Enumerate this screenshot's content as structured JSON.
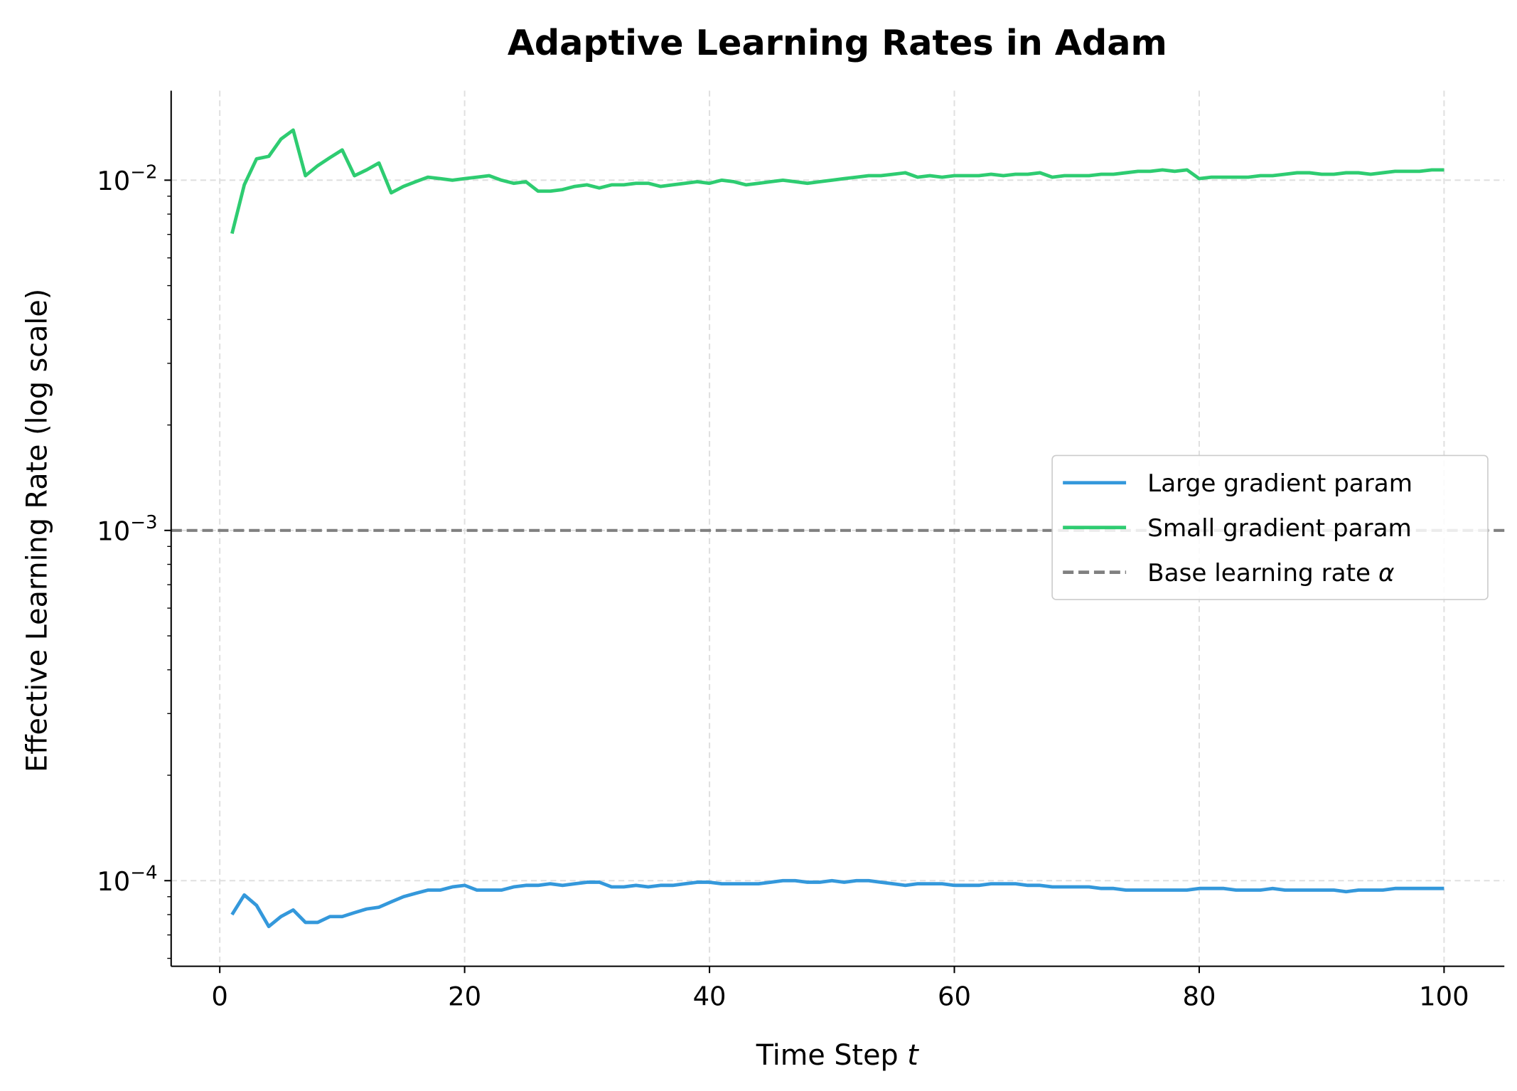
{
  "chart_data": {
    "type": "line",
    "title": "Adaptive Learning Rates in Adam",
    "xlabel": "Time Step",
    "xlabel_var": "t",
    "ylabel": "Effective Learning Rate (log scale)",
    "xlim": [
      -4,
      105
    ],
    "ylim": [
      5.7e-05,
      0.018
    ],
    "yscale": "log",
    "grid": true,
    "legend_position": "center-right",
    "xticks": [
      0,
      20,
      40,
      60,
      80,
      100
    ],
    "xtick_labels": [
      "0",
      "20",
      "40",
      "60",
      "80",
      "100"
    ],
    "yticks": [
      {
        "value": 0.01,
        "base": "10",
        "exp": "−2"
      },
      {
        "value": 0.001,
        "base": "10",
        "exp": "−3"
      },
      {
        "value": 0.0001,
        "base": "10",
        "exp": "−4"
      }
    ],
    "x": [
      1,
      2,
      3,
      4,
      5,
      6,
      7,
      8,
      9,
      10,
      11,
      12,
      13,
      14,
      15,
      16,
      17,
      18,
      19,
      20,
      21,
      22,
      23,
      24,
      25,
      26,
      27,
      28,
      29,
      30,
      31,
      32,
      33,
      34,
      35,
      36,
      37,
      38,
      39,
      40,
      41,
      42,
      43,
      44,
      45,
      46,
      47,
      48,
      49,
      50,
      51,
      52,
      53,
      54,
      55,
      56,
      57,
      58,
      59,
      60,
      61,
      62,
      63,
      64,
      65,
      66,
      67,
      68,
      69,
      70,
      71,
      72,
      73,
      74,
      75,
      76,
      77,
      78,
      79,
      80,
      81,
      82,
      83,
      84,
      85,
      86,
      87,
      88,
      89,
      90,
      91,
      92,
      93,
      94,
      95,
      96,
      97,
      98,
      99,
      100
    ],
    "series": [
      {
        "name": "Large gradient param",
        "color": "#3498db",
        "style": "solid",
        "values": [
          8e-05,
          9.1e-05,
          8.5e-05,
          7.4e-05,
          7.9e-05,
          8.25e-05,
          7.6e-05,
          7.6e-05,
          7.9e-05,
          7.9e-05,
          8.1e-05,
          8.3e-05,
          8.4e-05,
          8.7e-05,
          9e-05,
          9.2e-05,
          9.4e-05,
          9.4e-05,
          9.6e-05,
          9.7e-05,
          9.4e-05,
          9.4e-05,
          9.4e-05,
          9.6e-05,
          9.7e-05,
          9.7e-05,
          9.8e-05,
          9.7e-05,
          9.8e-05,
          9.9e-05,
          9.9e-05,
          9.6e-05,
          9.6e-05,
          9.7e-05,
          9.6e-05,
          9.7e-05,
          9.7e-05,
          9.8e-05,
          9.9e-05,
          9.9e-05,
          9.8e-05,
          9.8e-05,
          9.8e-05,
          9.8e-05,
          9.9e-05,
          0.0001,
          0.0001,
          9.9e-05,
          9.9e-05,
          0.0001,
          9.9e-05,
          0.0001,
          0.0001,
          9.9e-05,
          9.8e-05,
          9.7e-05,
          9.8e-05,
          9.8e-05,
          9.8e-05,
          9.7e-05,
          9.7e-05,
          9.7e-05,
          9.8e-05,
          9.8e-05,
          9.8e-05,
          9.7e-05,
          9.7e-05,
          9.6e-05,
          9.6e-05,
          9.6e-05,
          9.6e-05,
          9.5e-05,
          9.5e-05,
          9.4e-05,
          9.4e-05,
          9.4e-05,
          9.4e-05,
          9.4e-05,
          9.4e-05,
          9.5e-05,
          9.5e-05,
          9.5e-05,
          9.4e-05,
          9.4e-05,
          9.4e-05,
          9.5e-05,
          9.4e-05,
          9.4e-05,
          9.4e-05,
          9.4e-05,
          9.4e-05,
          9.3e-05,
          9.4e-05,
          9.4e-05,
          9.4e-05,
          9.5e-05,
          9.5e-05,
          9.5e-05,
          9.5e-05,
          9.5e-05
        ]
      },
      {
        "name": "Small gradient param",
        "color": "#2ecc71",
        "style": "solid",
        "values": [
          0.00704,
          0.0097,
          0.0115,
          0.0117,
          0.0131,
          0.0139,
          0.0103,
          0.011,
          0.0116,
          0.0122,
          0.0103,
          0.0107,
          0.0112,
          0.0092,
          0.0096,
          0.0099,
          0.0102,
          0.0101,
          0.01,
          0.0101,
          0.0102,
          0.0103,
          0.01,
          0.0098,
          0.0099,
          0.0093,
          0.0093,
          0.0094,
          0.0096,
          0.0097,
          0.0095,
          0.0097,
          0.0097,
          0.0098,
          0.0098,
          0.0096,
          0.0097,
          0.0098,
          0.0099,
          0.0098,
          0.01,
          0.0099,
          0.0097,
          0.0098,
          0.0099,
          0.01,
          0.0099,
          0.0098,
          0.0099,
          0.01,
          0.0101,
          0.0102,
          0.0103,
          0.0103,
          0.0104,
          0.0105,
          0.0102,
          0.0103,
          0.0102,
          0.0103,
          0.0103,
          0.0103,
          0.0104,
          0.0103,
          0.0104,
          0.0104,
          0.0105,
          0.0102,
          0.0103,
          0.0103,
          0.0103,
          0.0104,
          0.0104,
          0.0105,
          0.0106,
          0.0106,
          0.0107,
          0.0106,
          0.0107,
          0.0101,
          0.0102,
          0.0102,
          0.0102,
          0.0102,
          0.0103,
          0.0103,
          0.0104,
          0.0105,
          0.0105,
          0.0104,
          0.0104,
          0.0105,
          0.0105,
          0.0104,
          0.0105,
          0.0106,
          0.0106,
          0.0106,
          0.0107,
          0.0107
        ]
      }
    ],
    "hlines": [
      {
        "name": "Base learning rate",
        "name_symbol": "α",
        "value": 0.001,
        "color": "#808080",
        "style": "dashed"
      }
    ]
  }
}
